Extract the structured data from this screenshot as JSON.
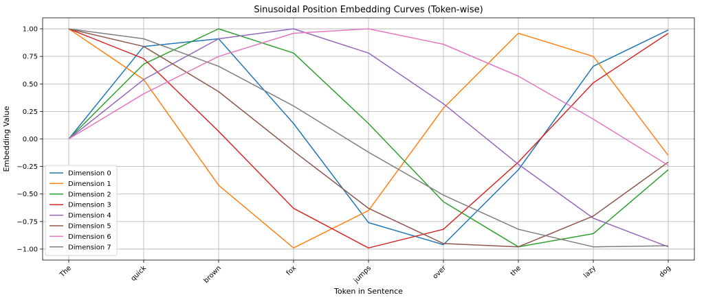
{
  "chart_data": {
    "type": "line",
    "title": "Sinusoidal Position Embedding Curves (Token-wise)",
    "xlabel": "Token in Sentence",
    "ylabel": "Embedding Value",
    "categories": [
      "The",
      "quick",
      "brown",
      "fox",
      "jumps",
      "over",
      "the",
      "lazy",
      "dog"
    ],
    "ylim": [
      -1.1,
      1.1
    ],
    "yticks": [
      -1.0,
      -0.75,
      -0.5,
      -0.25,
      0.0,
      0.25,
      0.5,
      0.75,
      1.0
    ],
    "ytick_labels": [
      "−1.00",
      "−0.75",
      "−0.50",
      "−0.25",
      "0.00",
      "0.25",
      "0.50",
      "0.75",
      "1.00"
    ],
    "grid": true,
    "legend_position": "bottom-left",
    "series": [
      {
        "name": "Dimension 0",
        "color": "#1f77b4",
        "values": [
          0.0,
          0.84,
          0.91,
          0.14,
          -0.76,
          -0.96,
          -0.28,
          0.66,
          0.99
        ]
      },
      {
        "name": "Dimension 1",
        "color": "#ff7f0e",
        "values": [
          1.0,
          0.54,
          -0.42,
          -0.99,
          -0.65,
          0.28,
          0.96,
          0.75,
          -0.15
        ]
      },
      {
        "name": "Dimension 2",
        "color": "#2ca02c",
        "values": [
          0.0,
          0.68,
          1.0,
          0.78,
          0.14,
          -0.57,
          -0.98,
          -0.86,
          -0.28
        ]
      },
      {
        "name": "Dimension 3",
        "color": "#d62728",
        "values": [
          1.0,
          0.73,
          0.07,
          -0.63,
          -0.99,
          -0.82,
          -0.21,
          0.51,
          0.96
        ]
      },
      {
        "name": "Dimension 4",
        "color": "#9467bd",
        "values": [
          0.0,
          0.54,
          0.91,
          1.0,
          0.78,
          0.32,
          -0.23,
          -0.72,
          -0.98
        ]
      },
      {
        "name": "Dimension 5",
        "color": "#8c564b",
        "values": [
          1.0,
          0.84,
          0.43,
          -0.11,
          -0.63,
          -0.95,
          -0.98,
          -0.7,
          -0.21
        ]
      },
      {
        "name": "Dimension 6",
        "color": "#e377c2",
        "values": [
          0.0,
          0.41,
          0.75,
          0.96,
          1.0,
          0.86,
          0.57,
          0.18,
          -0.24
        ]
      },
      {
        "name": "Dimension 7",
        "color": "#7f7f7f",
        "values": [
          1.0,
          0.91,
          0.66,
          0.3,
          -0.12,
          -0.51,
          -0.82,
          -0.98,
          -0.97
        ]
      }
    ]
  }
}
